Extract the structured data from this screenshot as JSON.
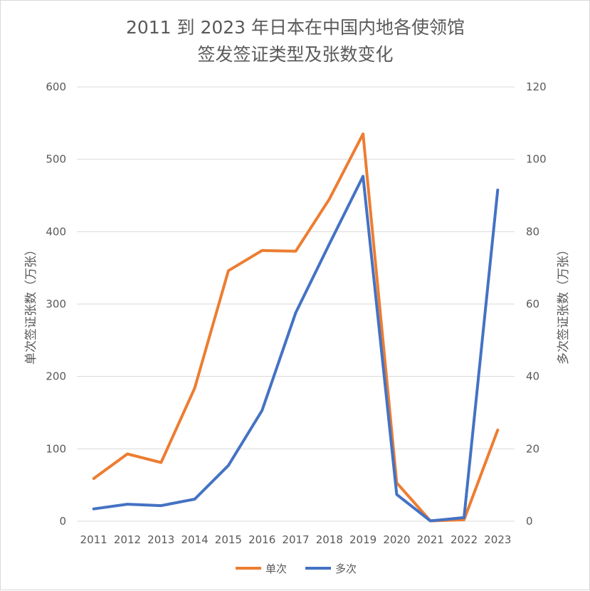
{
  "chart_data": {
    "type": "line",
    "title": [
      "2011 到 2023 年日本在中国内地各使领馆",
      "签发签证类型及张数变化"
    ],
    "categories": [
      "2011",
      "2012",
      "2013",
      "2014",
      "2015",
      "2016",
      "2017",
      "2018",
      "2019",
      "2020",
      "2021",
      "2022",
      "2023"
    ],
    "y_left": {
      "label": "单次签证张数（万张）",
      "range": [
        0,
        600
      ],
      "ticks": [
        0,
        100,
        200,
        300,
        400,
        500,
        600
      ]
    },
    "y_right": {
      "label": "多次签证张数（万张）",
      "range": [
        0,
        120
      ],
      "ticks": [
        0,
        20,
        40,
        60,
        80,
        100,
        120
      ]
    },
    "grid": true,
    "legend": "bottom",
    "series": [
      {
        "name": "单次",
        "axis": "left",
        "color": "#ED7D31",
        "values": [
          59,
          93,
          81,
          184,
          346,
          374,
          373,
          445,
          535,
          53,
          0.5,
          2,
          126
        ]
      },
      {
        "name": "多次",
        "axis": "right",
        "color": "#4472C4",
        "values": [
          3.4,
          4.7,
          4.3,
          6.1,
          15.4,
          30.6,
          57.6,
          76.6,
          95.3,
          7.4,
          0.1,
          1.0,
          91.5
        ]
      }
    ]
  }
}
